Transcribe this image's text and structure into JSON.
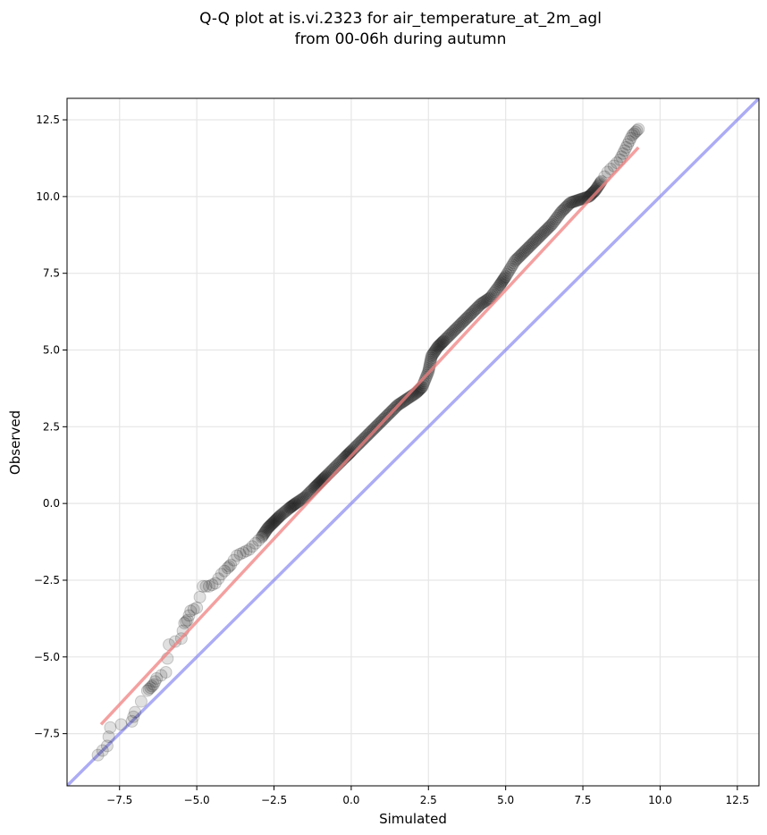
{
  "chart_data": {
    "type": "scatter",
    "title_lines": [
      "Q-Q plot at is.vi.2323 for air_temperature_at_2m_agl",
      "from 00-06h during autumn"
    ],
    "xlabel": "Simulated",
    "ylabel": "Observed",
    "xlim": [
      -9.2,
      13.2
    ],
    "ylim": [
      -9.2,
      13.2
    ],
    "xticks": [
      -7.5,
      -5.0,
      -2.5,
      0.0,
      2.5,
      5.0,
      7.5,
      10.0,
      12.5
    ],
    "yticks": [
      -7.5,
      -5.0,
      -2.5,
      0.0,
      2.5,
      5.0,
      7.5,
      10.0,
      12.5
    ],
    "x_tick_labels": [
      "−7.5",
      "−5.0",
      "−2.5",
      "0.0",
      "2.5",
      "5.0",
      "7.5",
      "10.0",
      "12.5"
    ],
    "y_tick_labels": [
      "−7.5",
      "−5.0",
      "−2.5",
      "0.0",
      "2.5",
      "5.0",
      "7.5",
      "10.0",
      "12.5"
    ],
    "grid": true,
    "series": [
      {
        "kind": "quantile_points",
        "color": "#000000",
        "x": [
          -8.2,
          -7.9,
          -7.8,
          -7.1,
          -7.0,
          -6.6,
          -6.5,
          -6.4,
          -6.3,
          -6.0,
          -5.9,
          -5.5,
          -5.4,
          -5.3,
          -5.2,
          -5.0,
          -4.8,
          -4.6,
          -4.4,
          -4.2,
          -4.0,
          -3.9,
          -3.7,
          -3.5,
          -3.3,
          -3.1,
          -2.9,
          -2.7,
          -2.5,
          -2.3,
          -2.0,
          -1.8,
          -1.5,
          -1.2,
          -1.0,
          -0.8,
          -0.5,
          -0.2,
          0.0,
          0.3,
          0.6,
          0.9,
          1.2,
          1.5,
          1.8,
          2.1,
          2.3,
          2.5,
          2.6,
          2.8,
          3.0,
          3.3,
          3.6,
          3.9,
          4.2,
          4.5,
          4.8,
          5.0,
          5.3,
          5.6,
          5.9,
          6.2,
          6.5,
          6.8,
          7.1,
          7.4,
          7.7,
          7.9,
          8.1,
          8.3,
          8.5,
          8.7,
          8.8,
          8.9,
          9.0,
          9.1,
          9.2,
          9.3
        ],
        "y": [
          -8.2,
          -7.9,
          -7.3,
          -7.1,
          -6.8,
          -6.1,
          -6.0,
          -5.9,
          -5.7,
          -5.5,
          -4.6,
          -4.4,
          -3.9,
          -3.8,
          -3.5,
          -3.4,
          -2.7,
          -2.7,
          -2.6,
          -2.3,
          -2.1,
          -2.0,
          -1.7,
          -1.6,
          -1.5,
          -1.3,
          -1.1,
          -0.8,
          -0.6,
          -0.4,
          -0.15,
          0.0,
          0.2,
          0.5,
          0.7,
          0.9,
          1.2,
          1.5,
          1.7,
          2.0,
          2.3,
          2.6,
          2.9,
          3.2,
          3.4,
          3.6,
          3.8,
          4.3,
          4.8,
          5.1,
          5.3,
          5.6,
          5.9,
          6.2,
          6.5,
          6.7,
          7.1,
          7.4,
          7.9,
          8.2,
          8.5,
          8.8,
          9.1,
          9.5,
          9.8,
          9.9,
          10.0,
          10.2,
          10.5,
          10.8,
          11.0,
          11.2,
          11.4,
          11.6,
          11.8,
          12.0,
          12.1,
          12.2
        ]
      },
      {
        "kind": "fit_line",
        "color": "#f08080",
        "x": [
          -8.1,
          9.3
        ],
        "y": [
          -7.2,
          11.6
        ]
      },
      {
        "kind": "identity_line",
        "color": "#8080f0",
        "x": [
          -9.2,
          13.2
        ],
        "y": [
          -9.2,
          13.2
        ]
      }
    ]
  }
}
